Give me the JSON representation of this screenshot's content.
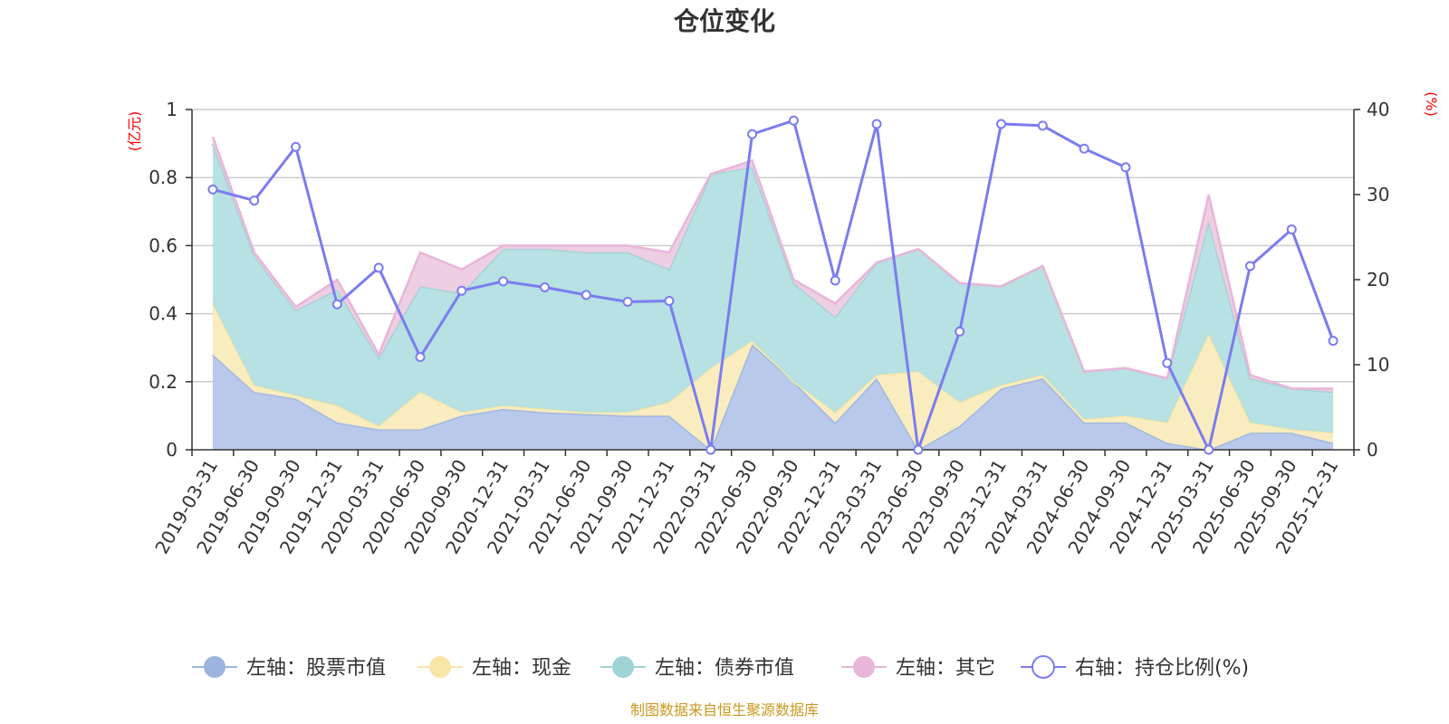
{
  "chart_data": {
    "type": "area",
    "title": "仓位变化",
    "left_unit": "(亿元)",
    "right_unit": "(%)",
    "source": "制图数据来自恒生聚源数据库",
    "left_ylim": [
      0,
      1
    ],
    "left_ticks": [
      "0",
      "0.2",
      "0.4",
      "0.6",
      "0.8",
      "1"
    ],
    "left_tick_values": [
      0,
      0.2,
      0.4,
      0.6,
      0.8,
      1
    ],
    "right_ylim": [
      0,
      40
    ],
    "right_ticks": [
      "0",
      "10",
      "20",
      "30",
      "40"
    ],
    "right_tick_values": [
      0,
      10,
      20,
      30,
      40
    ],
    "grid": true,
    "categories": [
      "2019-03-31",
      "2019-06-30",
      "2019-09-30",
      "2019-12-31",
      "2020-03-31",
      "2020-06-30",
      "2020-09-30",
      "2020-12-31",
      "2021-03-31",
      "2021-06-30",
      "2021-09-30",
      "2021-12-31",
      "2022-03-31",
      "2022-06-30",
      "2022-09-30",
      "2022-12-31",
      "2023-03-31",
      "2023-06-30",
      "2023-09-30",
      "2023-12-31",
      "2024-03-31",
      "2024-06-30",
      "2024-09-30",
      "2024-12-31",
      "2025-03-31",
      "2025-06-30",
      "2025-09-30",
      "2025-12-31"
    ],
    "series": [
      {
        "name": "左轴：股票市值",
        "axis": "left",
        "color": "#9db4e0",
        "fill": "#b5c6ea",
        "values": [
          0.28,
          0.17,
          0.15,
          0.08,
          0.06,
          0.06,
          0.1,
          0.12,
          0.11,
          0.105,
          0.1,
          0.1,
          0.0,
          0.31,
          0.2,
          0.08,
          0.21,
          0.0,
          0.07,
          0.18,
          0.21,
          0.08,
          0.08,
          0.02,
          0.0,
          0.05,
          0.05,
          0.02
        ]
      },
      {
        "name": "左轴：现金",
        "axis": "left",
        "color": "#f7e6a6",
        "fill": "#f9ecbd",
        "values": [
          0.15,
          0.02,
          0.01,
          0.05,
          0.01,
          0.11,
          0.01,
          0.01,
          0.01,
          0.005,
          0.01,
          0.04,
          0.24,
          0.01,
          0.0,
          0.03,
          0.01,
          0.23,
          0.07,
          0.01,
          0.01,
          0.01,
          0.02,
          0.06,
          0.34,
          0.03,
          0.01,
          0.03
        ]
      },
      {
        "name": "左轴：债券市值",
        "axis": "left",
        "color": "#9fd3d6",
        "fill": "#b3dfe0",
        "values": [
          0.47,
          0.38,
          0.25,
          0.34,
          0.2,
          0.31,
          0.35,
          0.46,
          0.47,
          0.47,
          0.47,
          0.39,
          0.57,
          0.51,
          0.29,
          0.28,
          0.33,
          0.36,
          0.35,
          0.29,
          0.32,
          0.14,
          0.14,
          0.13,
          0.33,
          0.13,
          0.12,
          0.12
        ]
      },
      {
        "name": "左轴：其它",
        "axis": "left",
        "color": "#e8b6d8",
        "fill": "#eccbe2",
        "values": [
          0.02,
          0.01,
          0.01,
          0.03,
          0.01,
          0.1,
          0.07,
          0.01,
          0.01,
          0.02,
          0.02,
          0.05,
          0.0,
          0.02,
          0.01,
          0.04,
          0.0,
          0.0,
          0.0,
          0.0,
          0.0,
          0.0,
          0.0,
          0.0,
          0.08,
          0.01,
          0.0,
          0.01
        ]
      },
      {
        "name": "右轴：持仓比例(%)",
        "axis": "right",
        "color": "#7b7cf0",
        "values": [
          30.6,
          29.3,
          35.6,
          17.1,
          21.4,
          10.9,
          18.7,
          19.8,
          19.1,
          18.2,
          17.4,
          17.5,
          0.0,
          37.1,
          38.7,
          19.9,
          38.3,
          0.0,
          13.9,
          38.3,
          38.1,
          35.4,
          33.2,
          10.2,
          0.0,
          21.6,
          25.9,
          12.8
        ]
      }
    ],
    "legend_position": "bottom"
  }
}
